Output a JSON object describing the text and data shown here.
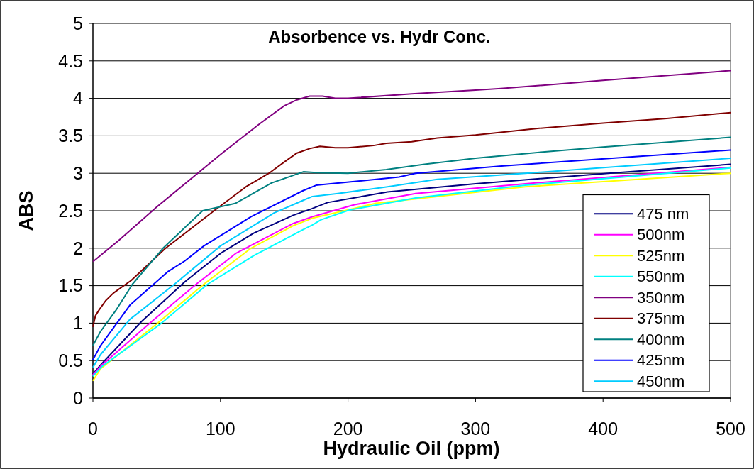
{
  "chart_data": {
    "type": "line",
    "title": "Absorbence vs. Hydr Conc.",
    "xlabel": "Hydraulic Oil (ppm)",
    "ylabel": "ABS",
    "xlim": [
      0,
      500
    ],
    "xticks": [
      0,
      100,
      200,
      300,
      400,
      500
    ],
    "ylim": [
      0,
      5
    ],
    "yticks": [
      0,
      0.5,
      1,
      1.5,
      2,
      2.5,
      3,
      3.5,
      4,
      4.5,
      5
    ],
    "grid": "y",
    "legend": "bottom right",
    "marker": "none",
    "line_style": "solid",
    "series": [
      {
        "name": "475 nm",
        "color": "#000080",
        "x": [
          0,
          7,
          38,
          72,
          100,
          126,
          157,
          172,
          184,
          231,
          300,
          404,
          500
        ],
        "values": [
          0.32,
          0.46,
          1.02,
          1.55,
          1.93,
          2.2,
          2.44,
          2.53,
          2.61,
          2.75,
          2.86,
          3.0,
          3.12
        ]
      },
      {
        "name": "500nm",
        "color": "#ff00ff",
        "x": [
          0,
          7,
          46,
          81,
          112,
          157,
          172,
          205,
          253,
          339,
          500
        ],
        "values": [
          0.31,
          0.44,
          1.02,
          1.52,
          1.93,
          2.33,
          2.42,
          2.58,
          2.73,
          2.86,
          3.08
        ]
      },
      {
        "name": "525nm",
        "color": "#ffff00",
        "x": [
          0,
          6,
          50,
          87,
          124,
          157,
          172,
          222,
          339,
          500
        ],
        "values": [
          0.23,
          0.39,
          0.99,
          1.52,
          2.0,
          2.3,
          2.4,
          2.6,
          2.82,
          3.0
        ]
      },
      {
        "name": "550nm",
        "color": "#00ffff",
        "x": [
          0,
          7,
          53,
          90,
          126,
          165,
          172,
          179,
          201,
          253,
          339,
          500
        ],
        "values": [
          0.29,
          0.42,
          0.99,
          1.52,
          1.9,
          2.25,
          2.31,
          2.38,
          2.51,
          2.67,
          2.84,
          3.07
        ]
      },
      {
        "name": "350nm",
        "color": "#800080",
        "x": [
          0,
          20,
          50,
          100,
          130,
          150,
          160,
          170,
          180,
          190,
          200,
          250,
          300,
          320,
          400,
          500
        ],
        "values": [
          1.82,
          2.1,
          2.55,
          3.25,
          3.65,
          3.9,
          3.98,
          4.03,
          4.03,
          4.0,
          4.0,
          4.06,
          4.11,
          4.13,
          4.24,
          4.37
        ]
      },
      {
        "name": "375nm",
        "color": "#800000",
        "x": [
          0,
          2,
          5,
          10,
          16,
          30,
          57,
          95,
          120,
          138,
          150,
          160,
          170,
          178,
          190,
          200,
          220,
          230,
          250,
          270,
          300,
          350,
          400,
          450,
          500
        ],
        "values": [
          0.95,
          1.1,
          1.18,
          1.3,
          1.4,
          1.57,
          2.0,
          2.5,
          2.82,
          3.0,
          3.15,
          3.27,
          3.33,
          3.36,
          3.34,
          3.34,
          3.37,
          3.4,
          3.42,
          3.47,
          3.51,
          3.6,
          3.67,
          3.73,
          3.81
        ]
      },
      {
        "name": "400nm",
        "color": "#008080",
        "x": [
          0,
          6,
          18,
          31,
          55,
          86,
          112,
          140,
          165,
          175,
          200,
          230,
          260,
          300,
          350,
          400,
          500
        ],
        "values": [
          0.7,
          0.89,
          1.17,
          1.52,
          2.0,
          2.5,
          2.6,
          2.87,
          3.02,
          3.01,
          3.0,
          3.05,
          3.12,
          3.2,
          3.28,
          3.35,
          3.48
        ]
      },
      {
        "name": "425nm",
        "color": "#0000ff",
        "x": [
          0,
          6,
          29,
          59,
          72,
          87,
          124,
          165,
          175,
          240,
          253,
          322,
          500
        ],
        "values": [
          0.51,
          0.7,
          1.24,
          1.69,
          1.83,
          2.03,
          2.42,
          2.77,
          2.84,
          2.95,
          3.0,
          3.1,
          3.31
        ]
      },
      {
        "name": "450nm",
        "color": "#00ccff",
        "x": [
          0,
          6,
          29,
          64,
          100,
          142,
          165,
          172,
          192,
          231,
          270,
          339,
          500
        ],
        "values": [
          0.41,
          0.58,
          1.05,
          1.52,
          2.03,
          2.47,
          2.64,
          2.69,
          2.73,
          2.82,
          2.92,
          3.0,
          3.2
        ]
      }
    ]
  }
}
